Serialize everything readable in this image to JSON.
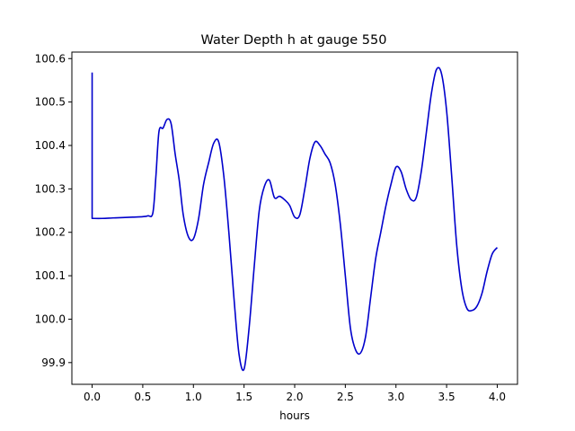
{
  "chart_data": {
    "type": "line",
    "title": "Water Depth h at gauge 550",
    "xlabel": "hours",
    "ylabel": "",
    "xlim": [
      -0.2,
      4.2
    ],
    "ylim": [
      99.85,
      100.615
    ],
    "xticks": [
      0.0,
      0.5,
      1.0,
      1.5,
      2.0,
      2.5,
      3.0,
      3.5,
      4.0
    ],
    "xtick_labels": [
      "0.0",
      "0.5",
      "1.0",
      "1.5",
      "2.0",
      "2.5",
      "3.0",
      "3.5",
      "4.0"
    ],
    "yticks": [
      99.9,
      100.0,
      100.1,
      100.2,
      100.3,
      100.4,
      100.5,
      100.6
    ],
    "ytick_labels": [
      "99.9",
      "100.0",
      "100.1",
      "100.2",
      "100.3",
      "100.4",
      "100.5",
      "100.6"
    ],
    "grid": false,
    "series": [
      {
        "color": "#0000cc",
        "x": [
          0.0,
          0.0,
          0.0,
          0.1,
          0.2,
          0.3,
          0.4,
          0.5,
          0.55,
          0.6,
          0.63,
          0.66,
          0.7,
          0.74,
          0.78,
          0.82,
          0.86,
          0.9,
          0.95,
          1.0,
          1.05,
          1.1,
          1.15,
          1.2,
          1.25,
          1.3,
          1.35,
          1.4,
          1.45,
          1.5,
          1.55,
          1.6,
          1.65,
          1.7,
          1.75,
          1.8,
          1.85,
          1.9,
          1.95,
          2.0,
          2.05,
          2.1,
          2.15,
          2.2,
          2.25,
          2.3,
          2.35,
          2.4,
          2.45,
          2.5,
          2.55,
          2.6,
          2.65,
          2.7,
          2.75,
          2.8,
          2.85,
          2.9,
          2.95,
          3.0,
          3.05,
          3.1,
          3.15,
          3.2,
          3.25,
          3.3,
          3.35,
          3.4,
          3.45,
          3.5,
          3.55,
          3.6,
          3.65,
          3.7,
          3.75,
          3.8,
          3.85,
          3.9,
          3.95,
          4.0
        ],
        "y": [
          100.568,
          100.232,
          100.232,
          100.232,
          100.233,
          100.234,
          100.235,
          100.236,
          100.238,
          100.245,
          100.33,
          100.432,
          100.44,
          100.46,
          100.45,
          100.38,
          100.32,
          100.24,
          100.19,
          100.185,
          100.23,
          100.31,
          100.36,
          100.405,
          100.408,
          100.33,
          100.2,
          100.05,
          99.92,
          99.885,
          99.98,
          100.12,
          100.25,
          100.305,
          100.32,
          100.28,
          100.283,
          100.275,
          100.262,
          100.235,
          100.24,
          100.3,
          100.37,
          100.408,
          100.4,
          100.38,
          100.36,
          100.31,
          100.22,
          100.1,
          99.98,
          99.93,
          99.922,
          99.96,
          100.05,
          100.14,
          100.2,
          100.26,
          100.31,
          100.35,
          100.34,
          100.3,
          100.275,
          100.28,
          100.34,
          100.43,
          100.52,
          100.575,
          100.565,
          100.48,
          100.33,
          100.17,
          100.07,
          100.025,
          100.02,
          100.03,
          100.06,
          100.11,
          100.15,
          100.165
        ]
      }
    ]
  }
}
